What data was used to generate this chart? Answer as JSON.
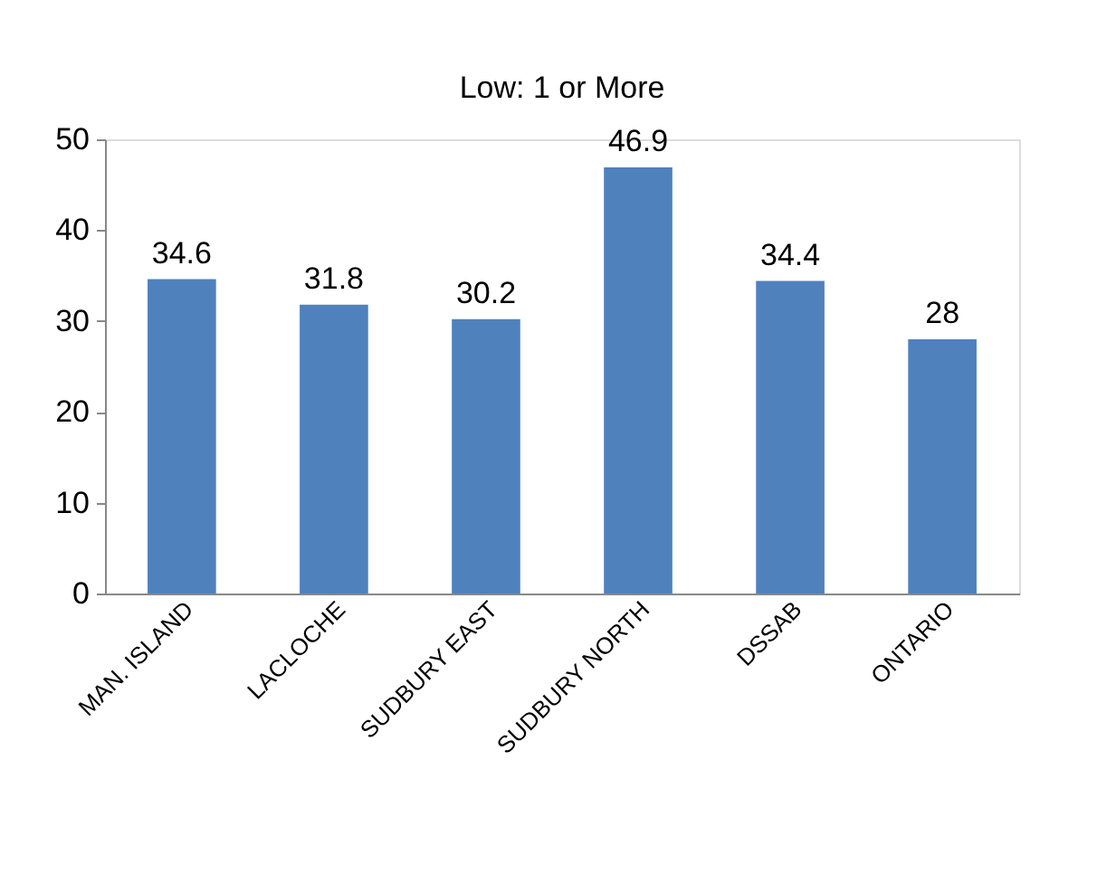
{
  "chart_data": {
    "type": "bar",
    "title": "Low: 1 or More",
    "categories": [
      "MAN. ISLAND",
      "LACLOCHE",
      "SUDBURY EAST",
      "SUDBURY NORTH",
      "DSSAB",
      "ONTARIO"
    ],
    "values": [
      34.6,
      31.8,
      30.2,
      46.9,
      34.4,
      28
    ],
    "color": "#4f81bd",
    "ylim": [
      0,
      50
    ],
    "yticks": [
      0,
      10,
      20,
      30,
      40,
      50
    ],
    "grid": false,
    "data_labels": true
  }
}
